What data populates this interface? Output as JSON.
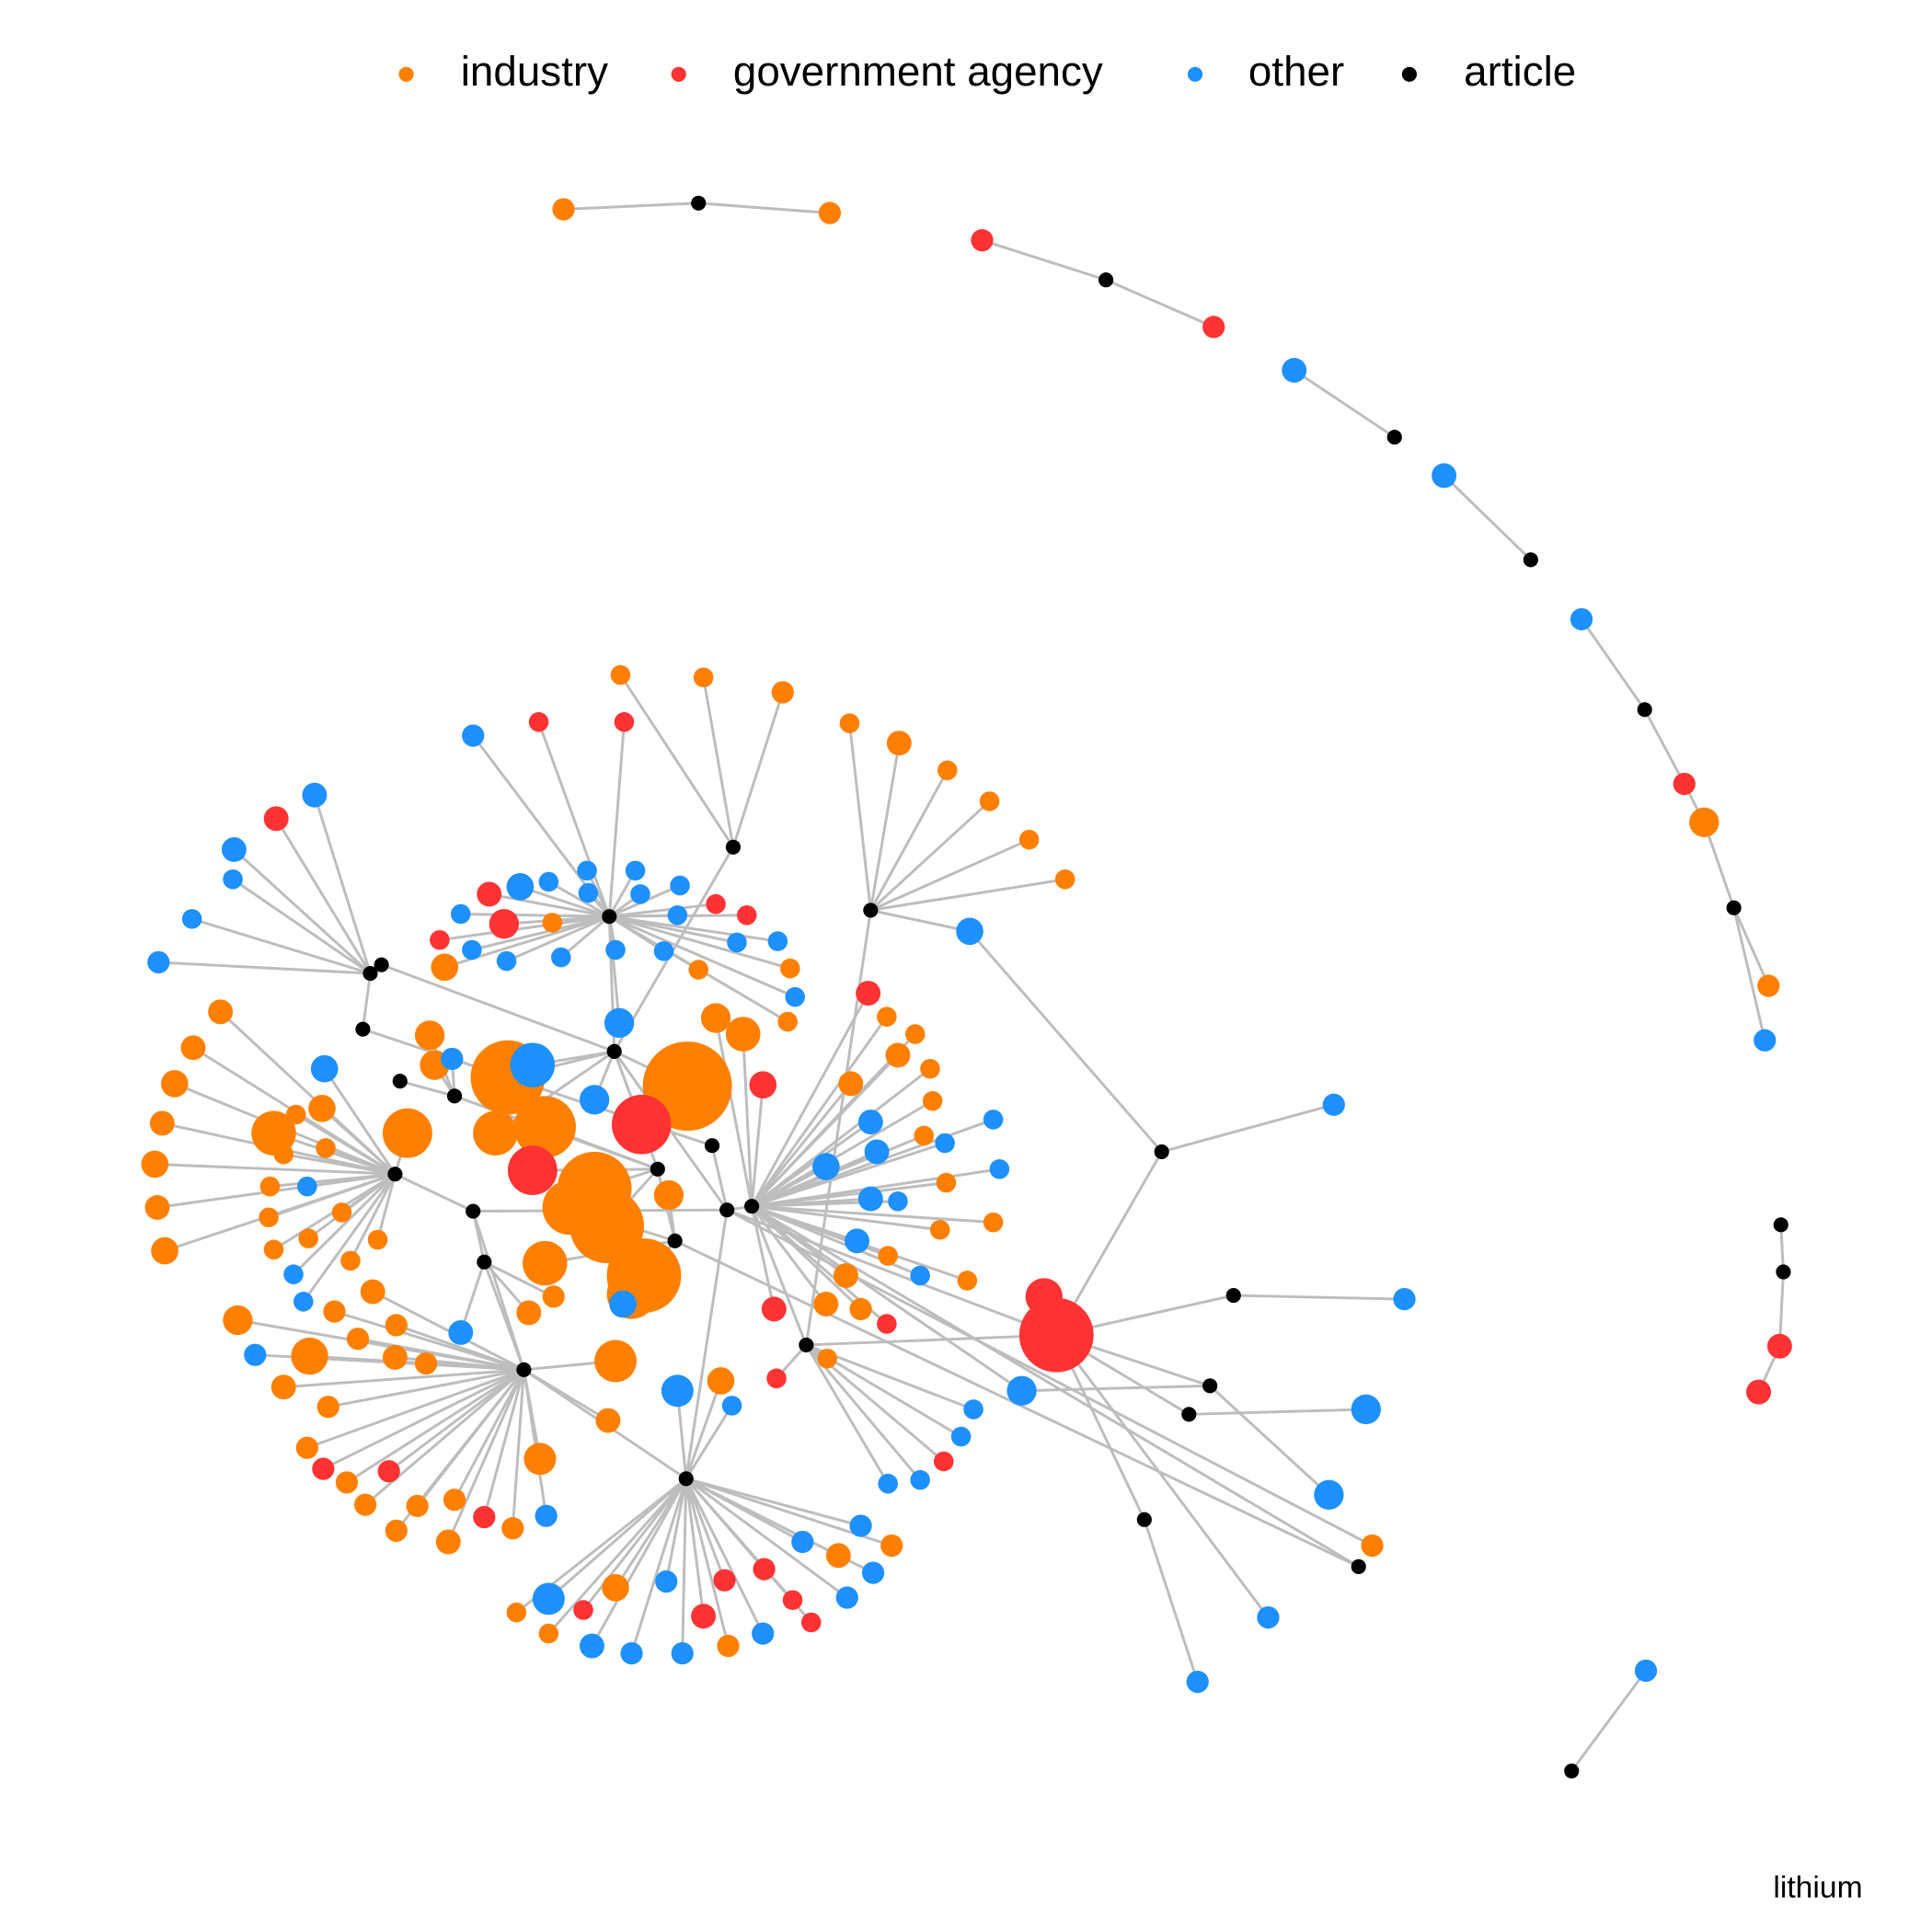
{
  "legend": {
    "items": [
      {
        "label": "industry",
        "color": "#ff8000"
      },
      {
        "label": "government agency",
        "color": "#ff3333"
      },
      {
        "label": "other",
        "color": "#1e90ff"
      },
      {
        "label": "article",
        "color": "#000000"
      }
    ]
  },
  "caption": "lithium"
}
